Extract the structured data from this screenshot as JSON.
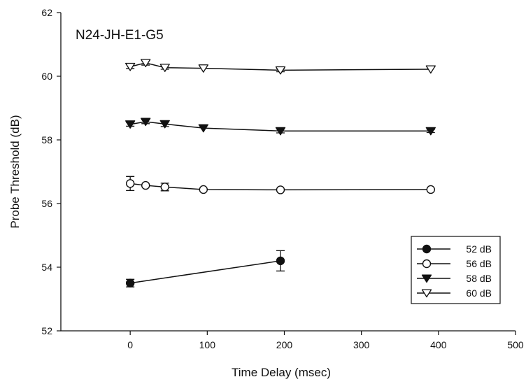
{
  "chart_data": {
    "type": "line",
    "title": "",
    "annotation": "N24-JH-E1-G5",
    "xlabel": "Time Delay (msec)",
    "ylabel": "Probe Threshold (dB)",
    "xlim": [
      -90,
      500
    ],
    "ylim": [
      52,
      62
    ],
    "xticks": [
      0,
      100,
      200,
      300,
      400,
      500
    ],
    "yticks": [
      52,
      54,
      56,
      58,
      60,
      62
    ],
    "grid": false,
    "legend_position": "bottom-right",
    "series": [
      {
        "name": "52 dB",
        "marker": "circle-filled",
        "x": [
          0,
          195
        ],
        "y": [
          53.5,
          54.2
        ],
        "err": [
          0.12,
          0.32
        ]
      },
      {
        "name": "56 dB",
        "marker": "circle-open",
        "x": [
          0,
          20,
          45,
          95,
          195,
          390
        ],
        "y": [
          56.63,
          56.57,
          56.52,
          56.44,
          56.43,
          56.44
        ],
        "err": [
          0.22,
          0.0,
          0.12,
          0.0,
          0.0,
          0.0
        ]
      },
      {
        "name": "58 dB",
        "marker": "triangle-down-filled",
        "x": [
          0,
          20,
          45,
          95,
          195,
          390
        ],
        "y": [
          58.49,
          58.57,
          58.5,
          58.37,
          58.28,
          58.28
        ],
        "err": [
          0.06,
          0.06,
          0.08,
          0.0,
          0.06,
          0.05
        ]
      },
      {
        "name": "60 dB",
        "marker": "triangle-down-open",
        "x": [
          0,
          20,
          45,
          95,
          195,
          390
        ],
        "y": [
          60.3,
          60.42,
          60.27,
          60.25,
          60.19,
          60.22
        ],
        "err": [
          0.06,
          0.07,
          0.05,
          0.0,
          0.05,
          0.0
        ]
      }
    ]
  }
}
